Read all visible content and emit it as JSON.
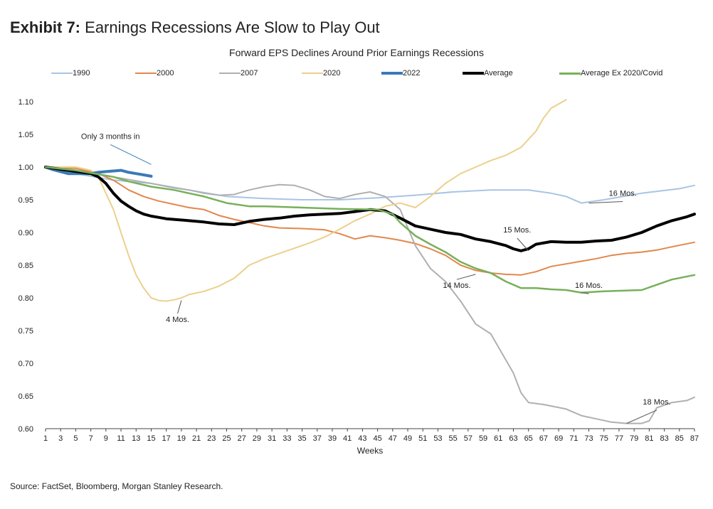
{
  "header": {
    "exhibit_label": "Exhibit 7:",
    "exhibit_title": "Earnings Recessions Are Slow to Play Out"
  },
  "source": "Source: FactSet, Bloomberg, Morgan Stanley Research.",
  "colors": {
    "s1990": "#a9c4e4",
    "s2000": "#e2874d",
    "s2007": "#b0b0b0",
    "s2020": "#ecd08c",
    "s2022": "#3a7ab8",
    "average": "#000000",
    "exCovid": "#77b05a"
  },
  "chart_data": {
    "type": "line",
    "title": "Forward EPS Declines Around Prior Earnings Recessions",
    "xlabel": "Weeks",
    "ylabel": "",
    "xlim": [
      1,
      87
    ],
    "ylim": [
      0.6,
      1.1
    ],
    "x_ticks": [
      "1",
      "3",
      "5",
      "7",
      "9",
      "11",
      "13",
      "15",
      "17",
      "19",
      "21",
      "23",
      "25",
      "27",
      "29",
      "31",
      "33",
      "35",
      "37",
      "39",
      "41",
      "43",
      "45",
      "47",
      "49",
      "51",
      "53",
      "55",
      "57",
      "59",
      "61",
      "63",
      "65",
      "67",
      "69",
      "71",
      "73",
      "75",
      "77",
      "79",
      "81",
      "83",
      "85",
      "87"
    ],
    "y_ticks": [
      "1.10",
      "1.05",
      "1.00",
      "0.95",
      "0.90",
      "0.85",
      "0.80",
      "0.75",
      "0.70",
      "0.65",
      "0.60"
    ],
    "series": [
      {
        "name": "1990",
        "key": "s1990",
        "width": 2,
        "x": [
          1,
          5,
          10,
          15,
          20,
          25,
          30,
          35,
          40,
          45,
          50,
          55,
          60,
          65,
          68,
          70,
          72,
          75,
          80,
          85,
          87
        ],
        "values": [
          1.0,
          0.99,
          0.98,
          0.975,
          0.965,
          0.955,
          0.952,
          0.95,
          0.95,
          0.953,
          0.957,
          0.962,
          0.965,
          0.965,
          0.96,
          0.955,
          0.945,
          0.95,
          0.96,
          0.967,
          0.972
        ]
      },
      {
        "name": "2000",
        "key": "s2000",
        "width": 2,
        "x": [
          1,
          5,
          8,
          10,
          12,
          14,
          16,
          18,
          20,
          22,
          24,
          26,
          28,
          30,
          32,
          35,
          38,
          40,
          42,
          44,
          46,
          48,
          50,
          52,
          54,
          56,
          58,
          60,
          62,
          64,
          66,
          68,
          70,
          72,
          74,
          76,
          78,
          80,
          82,
          84,
          87
        ],
        "values": [
          1.0,
          0.998,
          0.99,
          0.98,
          0.965,
          0.955,
          0.948,
          0.943,
          0.938,
          0.935,
          0.926,
          0.92,
          0.915,
          0.91,
          0.907,
          0.906,
          0.904,
          0.898,
          0.89,
          0.895,
          0.892,
          0.888,
          0.883,
          0.875,
          0.865,
          0.85,
          0.842,
          0.838,
          0.836,
          0.835,
          0.84,
          0.848,
          0.852,
          0.856,
          0.86,
          0.865,
          0.868,
          0.87,
          0.873,
          0.878,
          0.885
        ]
      },
      {
        "name": "2007",
        "key": "s2007",
        "width": 2,
        "x": [
          1,
          5,
          10,
          15,
          18,
          20,
          22,
          24,
          26,
          28,
          30,
          32,
          34,
          36,
          38,
          40,
          42,
          44,
          46,
          48,
          50,
          52,
          54,
          56,
          58,
          60,
          62,
          63,
          64,
          65,
          67,
          70,
          72,
          74,
          76,
          78,
          80,
          81,
          82,
          84,
          86,
          87
        ],
        "values": [
          1.0,
          0.995,
          0.985,
          0.975,
          0.968,
          0.965,
          0.96,
          0.957,
          0.958,
          0.965,
          0.97,
          0.973,
          0.972,
          0.965,
          0.955,
          0.952,
          0.958,
          0.962,
          0.955,
          0.935,
          0.88,
          0.845,
          0.825,
          0.795,
          0.76,
          0.745,
          0.705,
          0.685,
          0.655,
          0.64,
          0.637,
          0.63,
          0.62,
          0.615,
          0.61,
          0.608,
          0.608,
          0.612,
          0.632,
          0.64,
          0.643,
          0.648
        ]
      },
      {
        "name": "2020",
        "key": "s2020",
        "width": 2,
        "x": [
          1,
          5,
          7,
          8,
          9,
          10,
          11,
          12,
          13,
          14,
          15,
          16,
          17,
          18,
          19,
          20,
          22,
          24,
          26,
          28,
          30,
          32,
          34,
          36,
          38,
          40,
          42,
          44,
          46,
          48,
          50,
          52,
          54,
          56,
          58,
          60,
          62,
          64,
          66,
          67,
          68,
          70
        ],
        "values": [
          1.0,
          1.0,
          0.995,
          0.985,
          0.96,
          0.935,
          0.9,
          0.865,
          0.835,
          0.815,
          0.8,
          0.796,
          0.795,
          0.797,
          0.8,
          0.805,
          0.81,
          0.818,
          0.83,
          0.85,
          0.86,
          0.868,
          0.876,
          0.884,
          0.893,
          0.905,
          0.918,
          0.928,
          0.94,
          0.945,
          0.938,
          0.955,
          0.975,
          0.99,
          1.0,
          1.01,
          1.018,
          1.03,
          1.055,
          1.075,
          1.09,
          1.103
        ]
      },
      {
        "name": "2022",
        "key": "s2022",
        "width": 4,
        "x": [
          1,
          2,
          3,
          4,
          5,
          6,
          7,
          8,
          9,
          10,
          11,
          12,
          13,
          14,
          15
        ],
        "values": [
          1.0,
          0.996,
          0.993,
          0.99,
          0.99,
          0.99,
          0.99,
          0.992,
          0.993,
          0.994,
          0.995,
          0.992,
          0.99,
          0.988,
          0.986
        ]
      },
      {
        "name": "Average",
        "key": "average",
        "width": 4,
        "x": [
          1,
          4,
          7,
          8,
          9,
          10,
          11,
          12,
          13,
          14,
          15,
          16,
          17,
          18,
          20,
          22,
          24,
          26,
          28,
          30,
          32,
          34,
          36,
          38,
          40,
          42,
          44,
          46,
          48,
          50,
          52,
          54,
          56,
          58,
          60,
          62,
          63,
          64,
          65,
          66,
          68,
          70,
          72,
          74,
          76,
          78,
          80,
          82,
          84,
          86,
          87
        ],
        "values": [
          1.0,
          0.995,
          0.99,
          0.985,
          0.975,
          0.96,
          0.948,
          0.94,
          0.933,
          0.928,
          0.925,
          0.923,
          0.921,
          0.92,
          0.918,
          0.916,
          0.913,
          0.912,
          0.917,
          0.92,
          0.922,
          0.925,
          0.927,
          0.928,
          0.929,
          0.932,
          0.935,
          0.933,
          0.922,
          0.91,
          0.905,
          0.9,
          0.897,
          0.89,
          0.886,
          0.88,
          0.875,
          0.872,
          0.875,
          0.882,
          0.886,
          0.885,
          0.885,
          0.887,
          0.888,
          0.893,
          0.9,
          0.91,
          0.918,
          0.924,
          0.928
        ]
      },
      {
        "name": "Average Ex 2020/Covid",
        "key": "exCovid",
        "width": 2.5,
        "x": [
          1,
          5,
          10,
          12,
          15,
          18,
          20,
          22,
          25,
          28,
          30,
          35,
          40,
          45,
          47,
          48,
          50,
          52,
          54,
          56,
          58,
          60,
          62,
          64,
          65,
          66,
          68,
          70,
          72,
          75,
          80,
          82,
          84,
          87
        ],
        "values": [
          1.0,
          0.995,
          0.985,
          0.978,
          0.97,
          0.965,
          0.96,
          0.955,
          0.945,
          0.94,
          0.94,
          0.938,
          0.936,
          0.935,
          0.928,
          0.915,
          0.895,
          0.882,
          0.87,
          0.855,
          0.845,
          0.838,
          0.825,
          0.815,
          0.815,
          0.815,
          0.813,
          0.812,
          0.808,
          0.81,
          0.812,
          0.82,
          0.828,
          0.835
        ]
      }
    ],
    "annotations": [
      {
        "text": "Only 3 months in",
        "x": 9.6,
        "y": 1.043,
        "tx": 15,
        "ty": 1.004
      },
      {
        "text": "4 Mos.",
        "x": 18.5,
        "y": 0.763,
        "tx": 19,
        "ty": 0.796
      },
      {
        "text": "14 Mos.",
        "x": 55.5,
        "y": 0.815,
        "tx": 58,
        "ty": 0.836
      },
      {
        "text": "15 Mos.",
        "x": 63.5,
        "y": 0.9,
        "tx": 65,
        "ty": 0.872
      },
      {
        "text": "16 Mos.",
        "x": 73,
        "y": 0.815,
        "tx": 72,
        "ty": 0.808
      },
      {
        "text": "16 Mos.",
        "x": 77.5,
        "y": 0.956,
        "tx": 73,
        "ty": 0.945
      },
      {
        "text": "18 Mos.",
        "x": 82,
        "y": 0.637,
        "tx": 78,
        "ty": 0.608
      }
    ]
  }
}
